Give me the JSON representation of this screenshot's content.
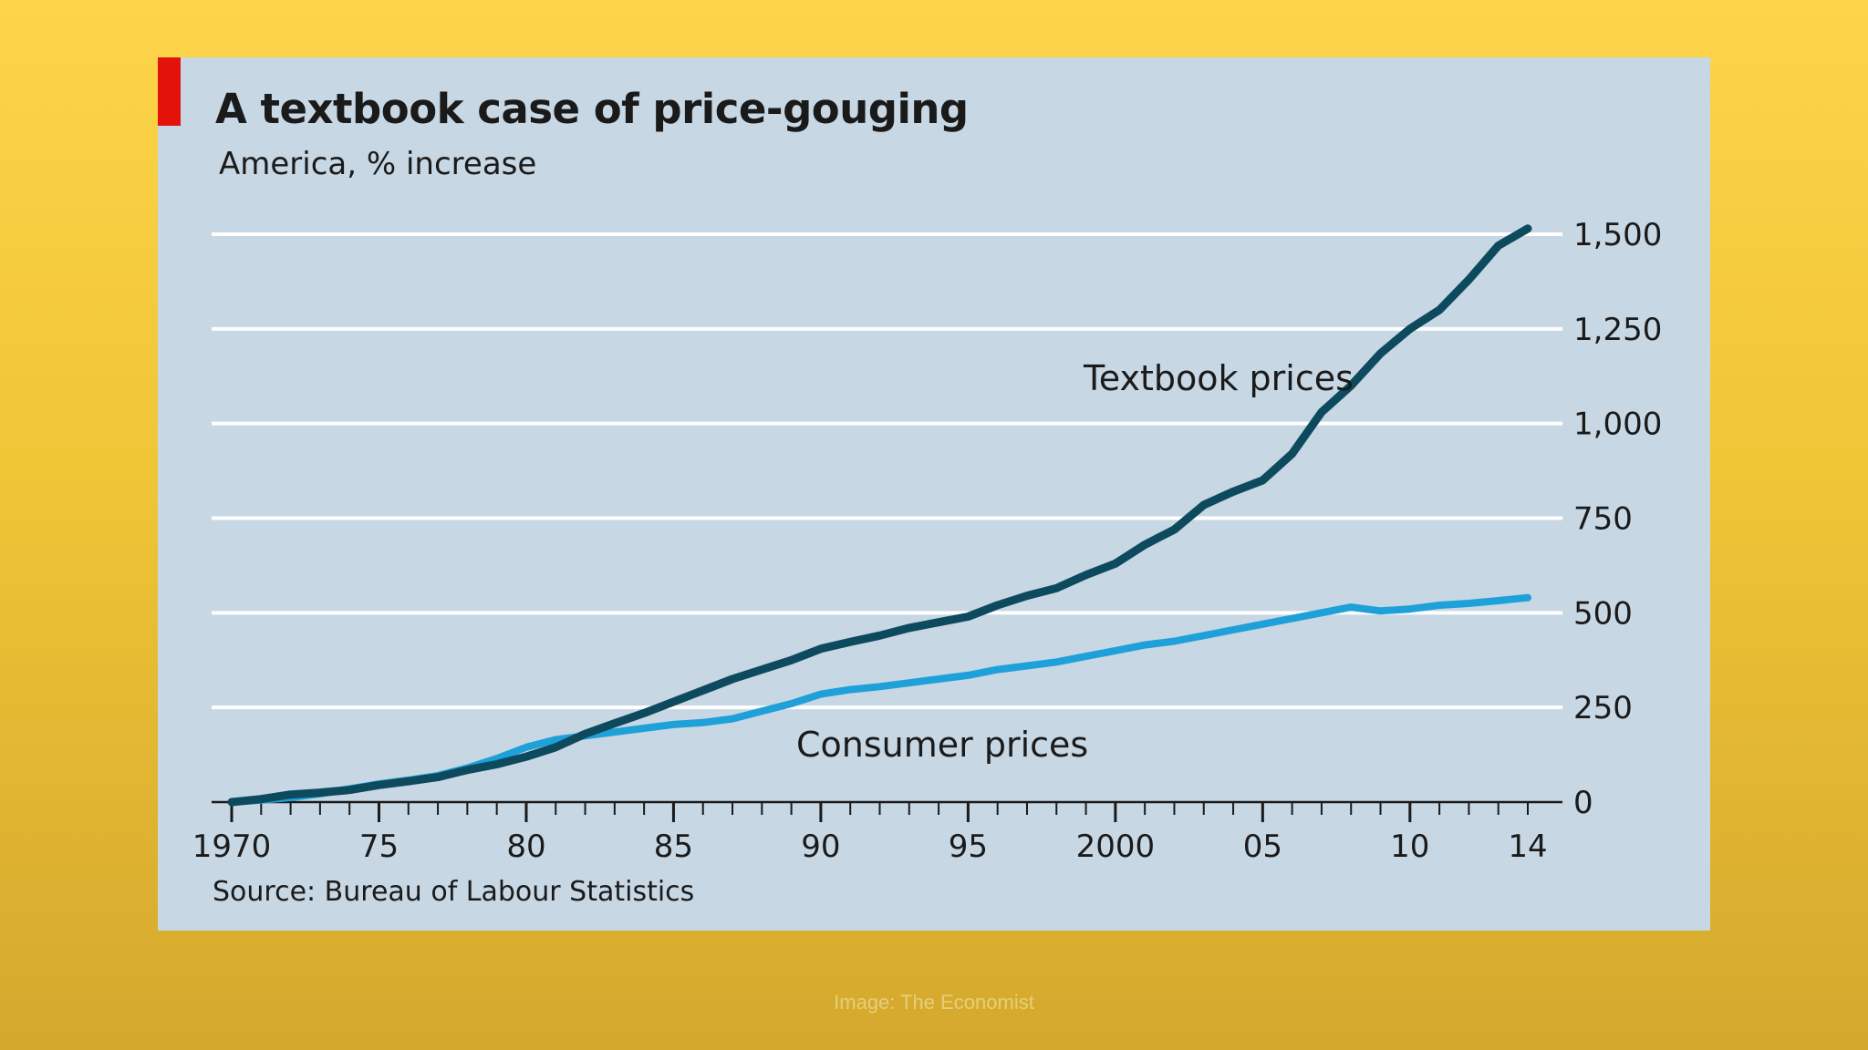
{
  "header": {
    "title": "A textbook case of price-gouging",
    "subtitle": "America, % increase"
  },
  "footer": {
    "source": "Source: Bureau of Labour Statistics",
    "credit": "Image: The Economist"
  },
  "colors": {
    "background": "#f5cd40",
    "panel": "#c7d7e4",
    "accent": "#e3120b",
    "textbook_series": "#0d4a5e",
    "consumer_series": "#1ea0d8",
    "gridline": "#ffffff"
  },
  "chart_data": {
    "type": "line",
    "title": "A textbook case of price-gouging",
    "subtitle": "America, % increase",
    "xlabel": "",
    "ylabel": "",
    "xlim": [
      1970,
      2014
    ],
    "ylim": [
      0,
      1500
    ],
    "x_tick_labels": [
      {
        "x": 1970,
        "label": "1970"
      },
      {
        "x": 1975,
        "label": "75"
      },
      {
        "x": 1980,
        "label": "80"
      },
      {
        "x": 1985,
        "label": "85"
      },
      {
        "x": 1990,
        "label": "90"
      },
      {
        "x": 1995,
        "label": "95"
      },
      {
        "x": 2000,
        "label": "2000"
      },
      {
        "x": 2005,
        "label": "05"
      },
      {
        "x": 2010,
        "label": "10"
      },
      {
        "x": 2014,
        "label": "14"
      }
    ],
    "y_tick_labels": [
      {
        "y": 0,
        "label": "0"
      },
      {
        "y": 250,
        "label": "250"
      },
      {
        "y": 500,
        "label": "500"
      },
      {
        "y": 750,
        "label": "750"
      },
      {
        "y": 1000,
        "label": "1,000"
      },
      {
        "y": 1250,
        "label": "1,250"
      },
      {
        "y": 1500,
        "label": "1,500"
      }
    ],
    "grid": true,
    "legend": "none (series labelled directly on chart)",
    "series": [
      {
        "name": "Textbook prices",
        "color": "#0d4a5e",
        "points": [
          [
            1970,
            0
          ],
          [
            1971,
            8
          ],
          [
            1972,
            20
          ],
          [
            1973,
            25
          ],
          [
            1974,
            32
          ],
          [
            1975,
            45
          ],
          [
            1976,
            55
          ],
          [
            1977,
            66
          ],
          [
            1978,
            85
          ],
          [
            1979,
            100
          ],
          [
            1980,
            120
          ],
          [
            1981,
            145
          ],
          [
            1982,
            180
          ],
          [
            1983,
            208
          ],
          [
            1984,
            235
          ],
          [
            1985,
            265
          ],
          [
            1986,
            295
          ],
          [
            1987,
            325
          ],
          [
            1988,
            350
          ],
          [
            1989,
            375
          ],
          [
            1990,
            405
          ],
          [
            1991,
            423
          ],
          [
            1992,
            440
          ],
          [
            1993,
            460
          ],
          [
            1994,
            475
          ],
          [
            1995,
            490
          ],
          [
            1996,
            520
          ],
          [
            1997,
            545
          ],
          [
            1998,
            565
          ],
          [
            1999,
            600
          ],
          [
            2000,
            630
          ],
          [
            2001,
            680
          ],
          [
            2002,
            720
          ],
          [
            2003,
            785
          ],
          [
            2004,
            820
          ],
          [
            2005,
            850
          ],
          [
            2006,
            920
          ],
          [
            2007,
            1030
          ],
          [
            2008,
            1100
          ],
          [
            2009,
            1185
          ],
          [
            2010,
            1250
          ],
          [
            2011,
            1300
          ],
          [
            2012,
            1380
          ],
          [
            2013,
            1470
          ],
          [
            2014,
            1515
          ]
        ]
      },
      {
        "name": "Consumer prices",
        "color": "#1ea0d8",
        "points": [
          [
            1970,
            0
          ],
          [
            1971,
            5
          ],
          [
            1972,
            12
          ],
          [
            1973,
            22
          ],
          [
            1974,
            35
          ],
          [
            1975,
            48
          ],
          [
            1976,
            58
          ],
          [
            1977,
            70
          ],
          [
            1978,
            90
          ],
          [
            1979,
            115
          ],
          [
            1980,
            145
          ],
          [
            1981,
            165
          ],
          [
            1982,
            175
          ],
          [
            1983,
            185
          ],
          [
            1984,
            195
          ],
          [
            1985,
            205
          ],
          [
            1986,
            210
          ],
          [
            1987,
            220
          ],
          [
            1988,
            240
          ],
          [
            1989,
            260
          ],
          [
            1990,
            285
          ],
          [
            1991,
            297
          ],
          [
            1992,
            305
          ],
          [
            1993,
            315
          ],
          [
            1994,
            325
          ],
          [
            1995,
            335
          ],
          [
            1996,
            350
          ],
          [
            1997,
            360
          ],
          [
            1998,
            370
          ],
          [
            1999,
            385
          ],
          [
            2000,
            400
          ],
          [
            2001,
            415
          ],
          [
            2002,
            425
          ],
          [
            2003,
            440
          ],
          [
            2004,
            455
          ],
          [
            2005,
            470
          ],
          [
            2006,
            485
          ],
          [
            2007,
            500
          ],
          [
            2008,
            515
          ],
          [
            2009,
            505
          ],
          [
            2010,
            510
          ],
          [
            2011,
            520
          ],
          [
            2012,
            525
          ],
          [
            2013,
            532
          ],
          [
            2014,
            540
          ]
        ]
      }
    ]
  }
}
